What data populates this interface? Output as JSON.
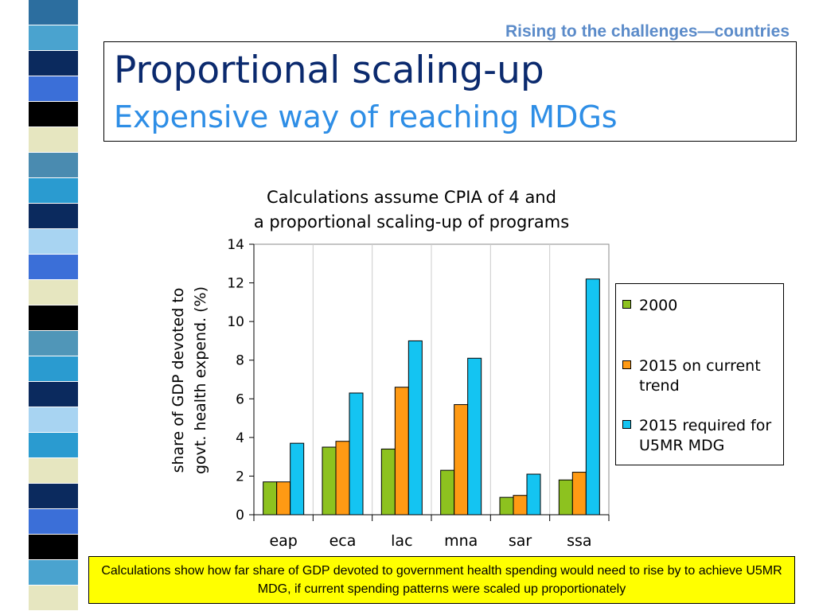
{
  "slide": {
    "section_label": "Rising to the challenges—countries",
    "title": "Proportional scaling-up",
    "subtitle": "Expensive way of reaching MDGs",
    "caption": "Calculations show how far share of GDP devoted to government health spending would need to rise by to achieve U5MR MDG, if current spending patterns were scaled up proportionately"
  },
  "decor": {
    "stripe_colors": [
      "#2c6e9f",
      "#4aa3cf",
      "#0b2a5e",
      "#3b6fd8",
      "#000000",
      "#e6e6c0",
      "#4a8bb0",
      "#2a9bd0",
      "#0b2a5e",
      "#a8d4f2",
      "#3b6fd8",
      "#e6e6c0",
      "#000000",
      "#5096b8",
      "#2a9bd0",
      "#0b2a5e",
      "#a8d4f2",
      "#2a9bd0",
      "#e6e6c0",
      "#0b2a5e",
      "#3b6fd8",
      "#000000",
      "#4aa3cf",
      "#e6e6c0"
    ]
  },
  "chart_data": {
    "type": "bar",
    "title": "Calculations assume CPIA of 4 and\na proportional scaling-up of programs",
    "ylabel": "share of GDP devoted to\ngovt. health expend. (%)",
    "xlabel": "",
    "categories": [
      "eap",
      "eca",
      "lac",
      "mna",
      "sar",
      "ssa"
    ],
    "ylim": [
      0,
      14
    ],
    "yticks": [
      0,
      2,
      4,
      6,
      8,
      10,
      12,
      14
    ],
    "grid": true,
    "legend_position": "right",
    "series": [
      {
        "name": "2000",
        "color": "#8dc21f",
        "values": [
          1.7,
          3.5,
          3.4,
          2.3,
          0.9,
          1.8
        ]
      },
      {
        "name": "2015 on current trend",
        "color": "#ff9a14",
        "values": [
          1.7,
          3.8,
          6.6,
          5.7,
          1.0,
          2.2
        ]
      },
      {
        "name": "2015 required for U5MR MDG",
        "color": "#14c4f2",
        "values": [
          3.7,
          6.3,
          9.0,
          8.1,
          2.1,
          12.2
        ]
      }
    ]
  }
}
